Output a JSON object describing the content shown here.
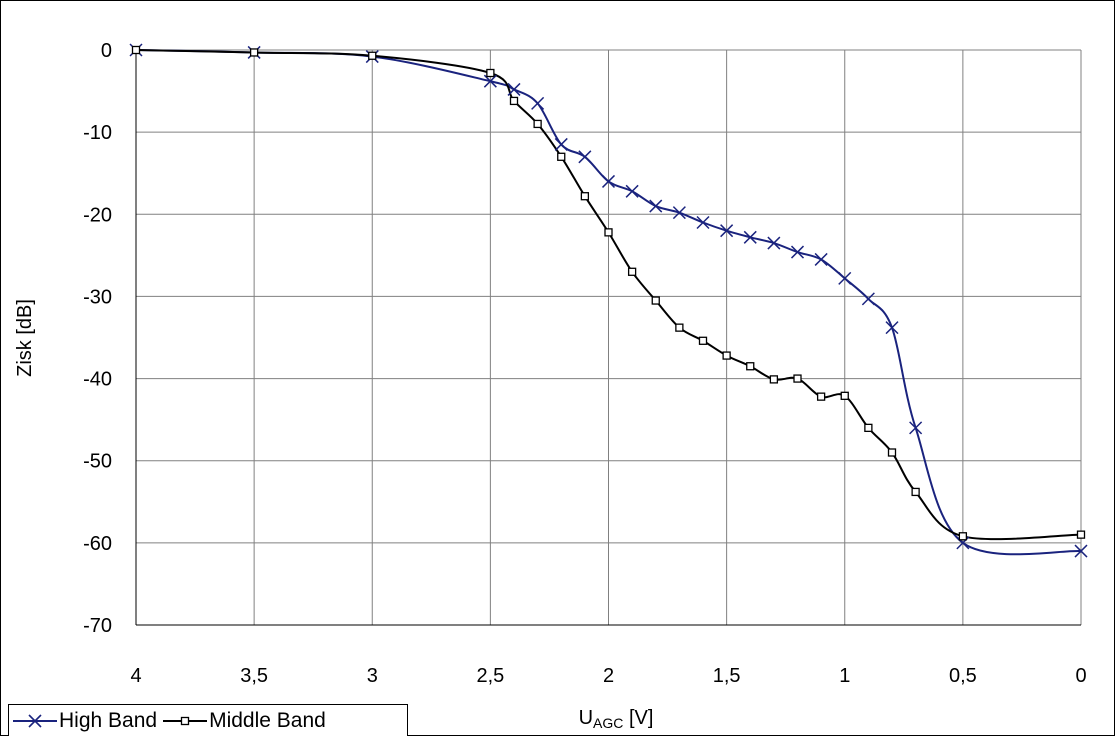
{
  "chart_data": {
    "type": "line",
    "title": "",
    "xlabel_main": "U",
    "xlabel_sub": "AGC",
    "xlabel_unit": " [V]",
    "ylabel": "Zisk [dB]",
    "xlim": [
      4,
      0
    ],
    "ylim": [
      -70,
      0
    ],
    "x_ticks": [
      {
        "v": 4,
        "label": "4"
      },
      {
        "v": 3.5,
        "label": "3,5"
      },
      {
        "v": 3,
        "label": "3"
      },
      {
        "v": 2.5,
        "label": "2,5"
      },
      {
        "v": 2,
        "label": "2"
      },
      {
        "v": 1.5,
        "label": "1,5"
      },
      {
        "v": 1,
        "label": "1"
      },
      {
        "v": 0.5,
        "label": "0,5"
      },
      {
        "v": 0,
        "label": "0"
      }
    ],
    "y_ticks": [
      {
        "v": 0,
        "label": "0"
      },
      {
        "v": -10,
        "label": "-10"
      },
      {
        "v": -20,
        "label": "-20"
      },
      {
        "v": -30,
        "label": "-30"
      },
      {
        "v": -40,
        "label": "-40"
      },
      {
        "v": -50,
        "label": "-50"
      },
      {
        "v": -60,
        "label": "-60"
      },
      {
        "v": -70,
        "label": "-70"
      }
    ],
    "grid": true,
    "legend_position": "bottom-left",
    "series": [
      {
        "name": "High Band",
        "color": "#1a237e",
        "marker": "x",
        "x": [
          4,
          3.5,
          3,
          2.5,
          2.4,
          2.3,
          2.2,
          2.1,
          2,
          1.9,
          1.8,
          1.7,
          1.6,
          1.5,
          1.4,
          1.3,
          1.2,
          1.1,
          1,
          0.9,
          0.8,
          0.7,
          0.5,
          0
        ],
        "y": [
          0,
          -0.3,
          -0.8,
          -3.8,
          -4.8,
          -6.5,
          -11.5,
          -13,
          -16,
          -17.2,
          -19,
          -19.8,
          -21,
          -22,
          -22.8,
          -23.5,
          -24.6,
          -25.5,
          -27.8,
          -30.3,
          -33.8,
          -46,
          -60,
          -61
        ]
      },
      {
        "name": "Middle Band",
        "color": "#000000",
        "marker": "square",
        "x": [
          4,
          3.5,
          3,
          2.5,
          2.4,
          2.3,
          2.2,
          2.1,
          2,
          1.9,
          1.8,
          1.7,
          1.6,
          1.5,
          1.4,
          1.3,
          1.2,
          1.1,
          1,
          0.9,
          0.8,
          0.7,
          0.5,
          0
        ],
        "y": [
          0,
          -0.3,
          -0.7,
          -2.8,
          -6.2,
          -9,
          -13,
          -17.8,
          -22.2,
          -27,
          -30.5,
          -33.8,
          -35.4,
          -37.2,
          -38.5,
          -40.1,
          -40,
          -42.2,
          -42.1,
          -46,
          -49,
          -53.8,
          -59.2,
          -59
        ]
      }
    ]
  }
}
